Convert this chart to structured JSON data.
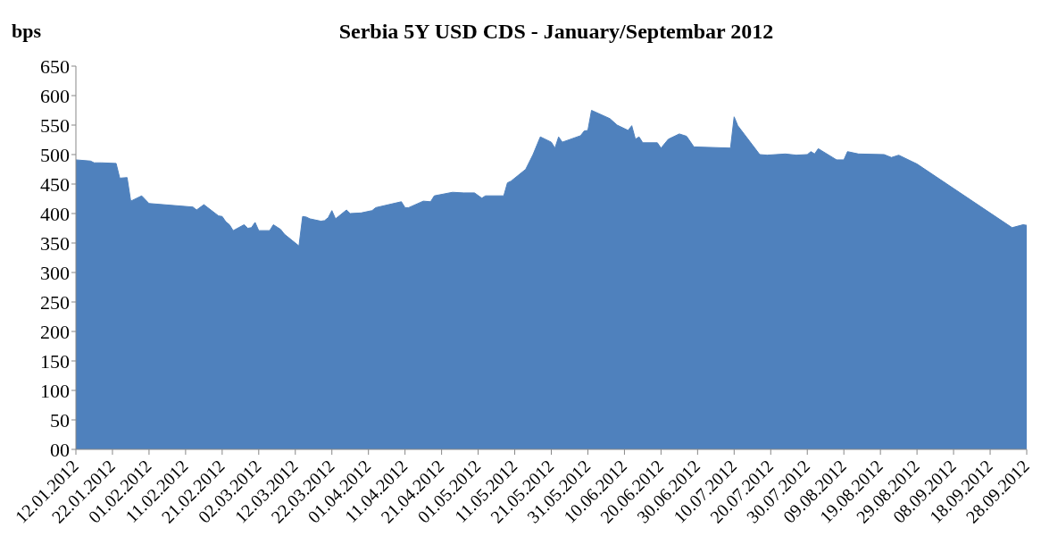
{
  "chart_data": {
    "type": "area",
    "title": "Serbia 5Y USD CDS - January/Septembar 2012",
    "ylabel": "bps",
    "x": [
      "2012-01-12",
      "2012-01-16",
      "2012-01-17",
      "2012-01-19",
      "2012-01-23",
      "2012-01-24",
      "2012-01-26",
      "2012-01-27",
      "2012-01-30",
      "2012-02-01",
      "2012-02-13",
      "2012-02-14",
      "2012-02-16",
      "2012-02-20",
      "2012-02-21",
      "2012-02-22",
      "2012-02-23",
      "2012-02-24",
      "2012-02-27",
      "2012-02-28",
      "2012-02-29",
      "2012-03-01",
      "2012-03-02",
      "2012-03-05",
      "2012-03-06",
      "2012-03-08",
      "2012-03-09",
      "2012-03-13",
      "2012-03-14",
      "2012-03-15",
      "2012-03-16",
      "2012-03-19",
      "2012-03-20",
      "2012-03-21",
      "2012-03-22",
      "2012-03-23",
      "2012-03-26",
      "2012-03-27",
      "2012-03-30",
      "2012-04-02",
      "2012-04-03",
      "2012-04-10",
      "2012-04-11",
      "2012-04-12",
      "2012-04-16",
      "2012-04-18",
      "2012-04-19",
      "2012-04-24",
      "2012-04-27",
      "2012-04-30",
      "2012-05-02",
      "2012-05-03",
      "2012-05-08",
      "2012-05-09",
      "2012-05-10",
      "2012-05-14",
      "2012-05-16",
      "2012-05-18",
      "2012-05-21",
      "2012-05-22",
      "2012-05-23",
      "2012-05-24",
      "2012-05-29",
      "2012-05-30",
      "2012-05-31",
      "2012-06-01",
      "2012-06-06",
      "2012-06-08",
      "2012-06-11",
      "2012-06-12",
      "2012-06-13",
      "2012-06-14",
      "2012-06-15",
      "2012-06-19",
      "2012-06-20",
      "2012-06-22",
      "2012-06-25",
      "2012-06-27",
      "2012-06-29",
      "2012-07-09",
      "2012-07-10",
      "2012-07-11",
      "2012-07-17",
      "2012-07-19",
      "2012-07-24",
      "2012-07-27",
      "2012-07-30",
      "2012-07-31",
      "2012-08-01",
      "2012-08-02",
      "2012-08-07",
      "2012-08-09",
      "2012-08-10",
      "2012-08-13",
      "2012-08-20",
      "2012-08-22",
      "2012-08-24",
      "2012-08-29",
      "2012-09-24",
      "2012-09-27",
      "2012-09-28"
    ],
    "series": [
      {
        "color": "#4f81bd",
        "values": [
          491,
          489,
          486,
          486,
          485,
          460,
          461,
          421,
          430,
          417,
          411,
          406,
          415,
          396,
          395,
          386,
          381,
          371,
          381,
          375,
          376,
          385,
          371,
          371,
          381,
          373,
          365,
          345,
          395,
          394,
          391,
          387,
          388,
          393,
          405,
          391,
          406,
          400,
          401,
          405,
          410,
          420,
          410,
          410,
          421,
          420,
          430,
          436,
          435,
          435,
          426,
          430,
          430,
          452,
          455,
          475,
          500,
          530,
          521,
          511,
          530,
          521,
          532,
          540,
          541,
          575,
          561,
          550,
          541,
          549,
          526,
          530,
          520,
          520,
          511,
          526,
          535,
          531,
          513,
          511,
          564,
          549,
          500,
          499,
          501,
          499,
          500,
          505,
          501,
          510,
          491,
          491,
          505,
          501,
          500,
          495,
          499,
          484,
          376,
          381,
          380
        ]
      }
    ],
    "xlim": [
      "2012-01-12",
      "2012-09-28"
    ],
    "xticks": [
      {
        "value": "2012-01-12",
        "label": "12.01.2012"
      },
      {
        "value": "2012-01-22",
        "label": "22.01.2012"
      },
      {
        "value": "2012-02-01",
        "label": "01.02.2012"
      },
      {
        "value": "2012-02-11",
        "label": "11.02.2012"
      },
      {
        "value": "2012-02-21",
        "label": "21.02.2012"
      },
      {
        "value": "2012-03-02",
        "label": "02.03.2012"
      },
      {
        "value": "2012-03-12",
        "label": "12.03.2012"
      },
      {
        "value": "2012-03-22",
        "label": "22.03.2012"
      },
      {
        "value": "2012-04-01",
        "label": "01.04.2012"
      },
      {
        "value": "2012-04-11",
        "label": "11.04.2012"
      },
      {
        "value": "2012-04-21",
        "label": "21.04.2012"
      },
      {
        "value": "2012-05-01",
        "label": "01.05.2012"
      },
      {
        "value": "2012-05-11",
        "label": "11.05.2012"
      },
      {
        "value": "2012-05-21",
        "label": "21.05.2012"
      },
      {
        "value": "2012-05-31",
        "label": "31.05.2012"
      },
      {
        "value": "2012-06-10",
        "label": "10.06.2012"
      },
      {
        "value": "2012-06-20",
        "label": "20.06.2012"
      },
      {
        "value": "2012-06-30",
        "label": "30.06.2012"
      },
      {
        "value": "2012-07-10",
        "label": "10.07.2012"
      },
      {
        "value": "2012-07-20",
        "label": "20.07.2012"
      },
      {
        "value": "2012-07-30",
        "label": "30.07.2012"
      },
      {
        "value": "2012-08-09",
        "label": "09.08.2012"
      },
      {
        "value": "2012-08-19",
        "label": "19.08.2012"
      },
      {
        "value": "2012-08-29",
        "label": "29.08.2012"
      },
      {
        "value": "2012-09-08",
        "label": "08.09.2012"
      },
      {
        "value": "2012-09-18",
        "label": "18.09.2012"
      },
      {
        "value": "2012-09-28",
        "label": "28.09.2012"
      }
    ],
    "ylim": [
      0,
      650
    ],
    "yticks": [
      {
        "value": 0,
        "label": "00"
      },
      50,
      100,
      150,
      200,
      250,
      300,
      350,
      400,
      450,
      500,
      550,
      600,
      650
    ],
    "grid": false,
    "legend": false
  }
}
